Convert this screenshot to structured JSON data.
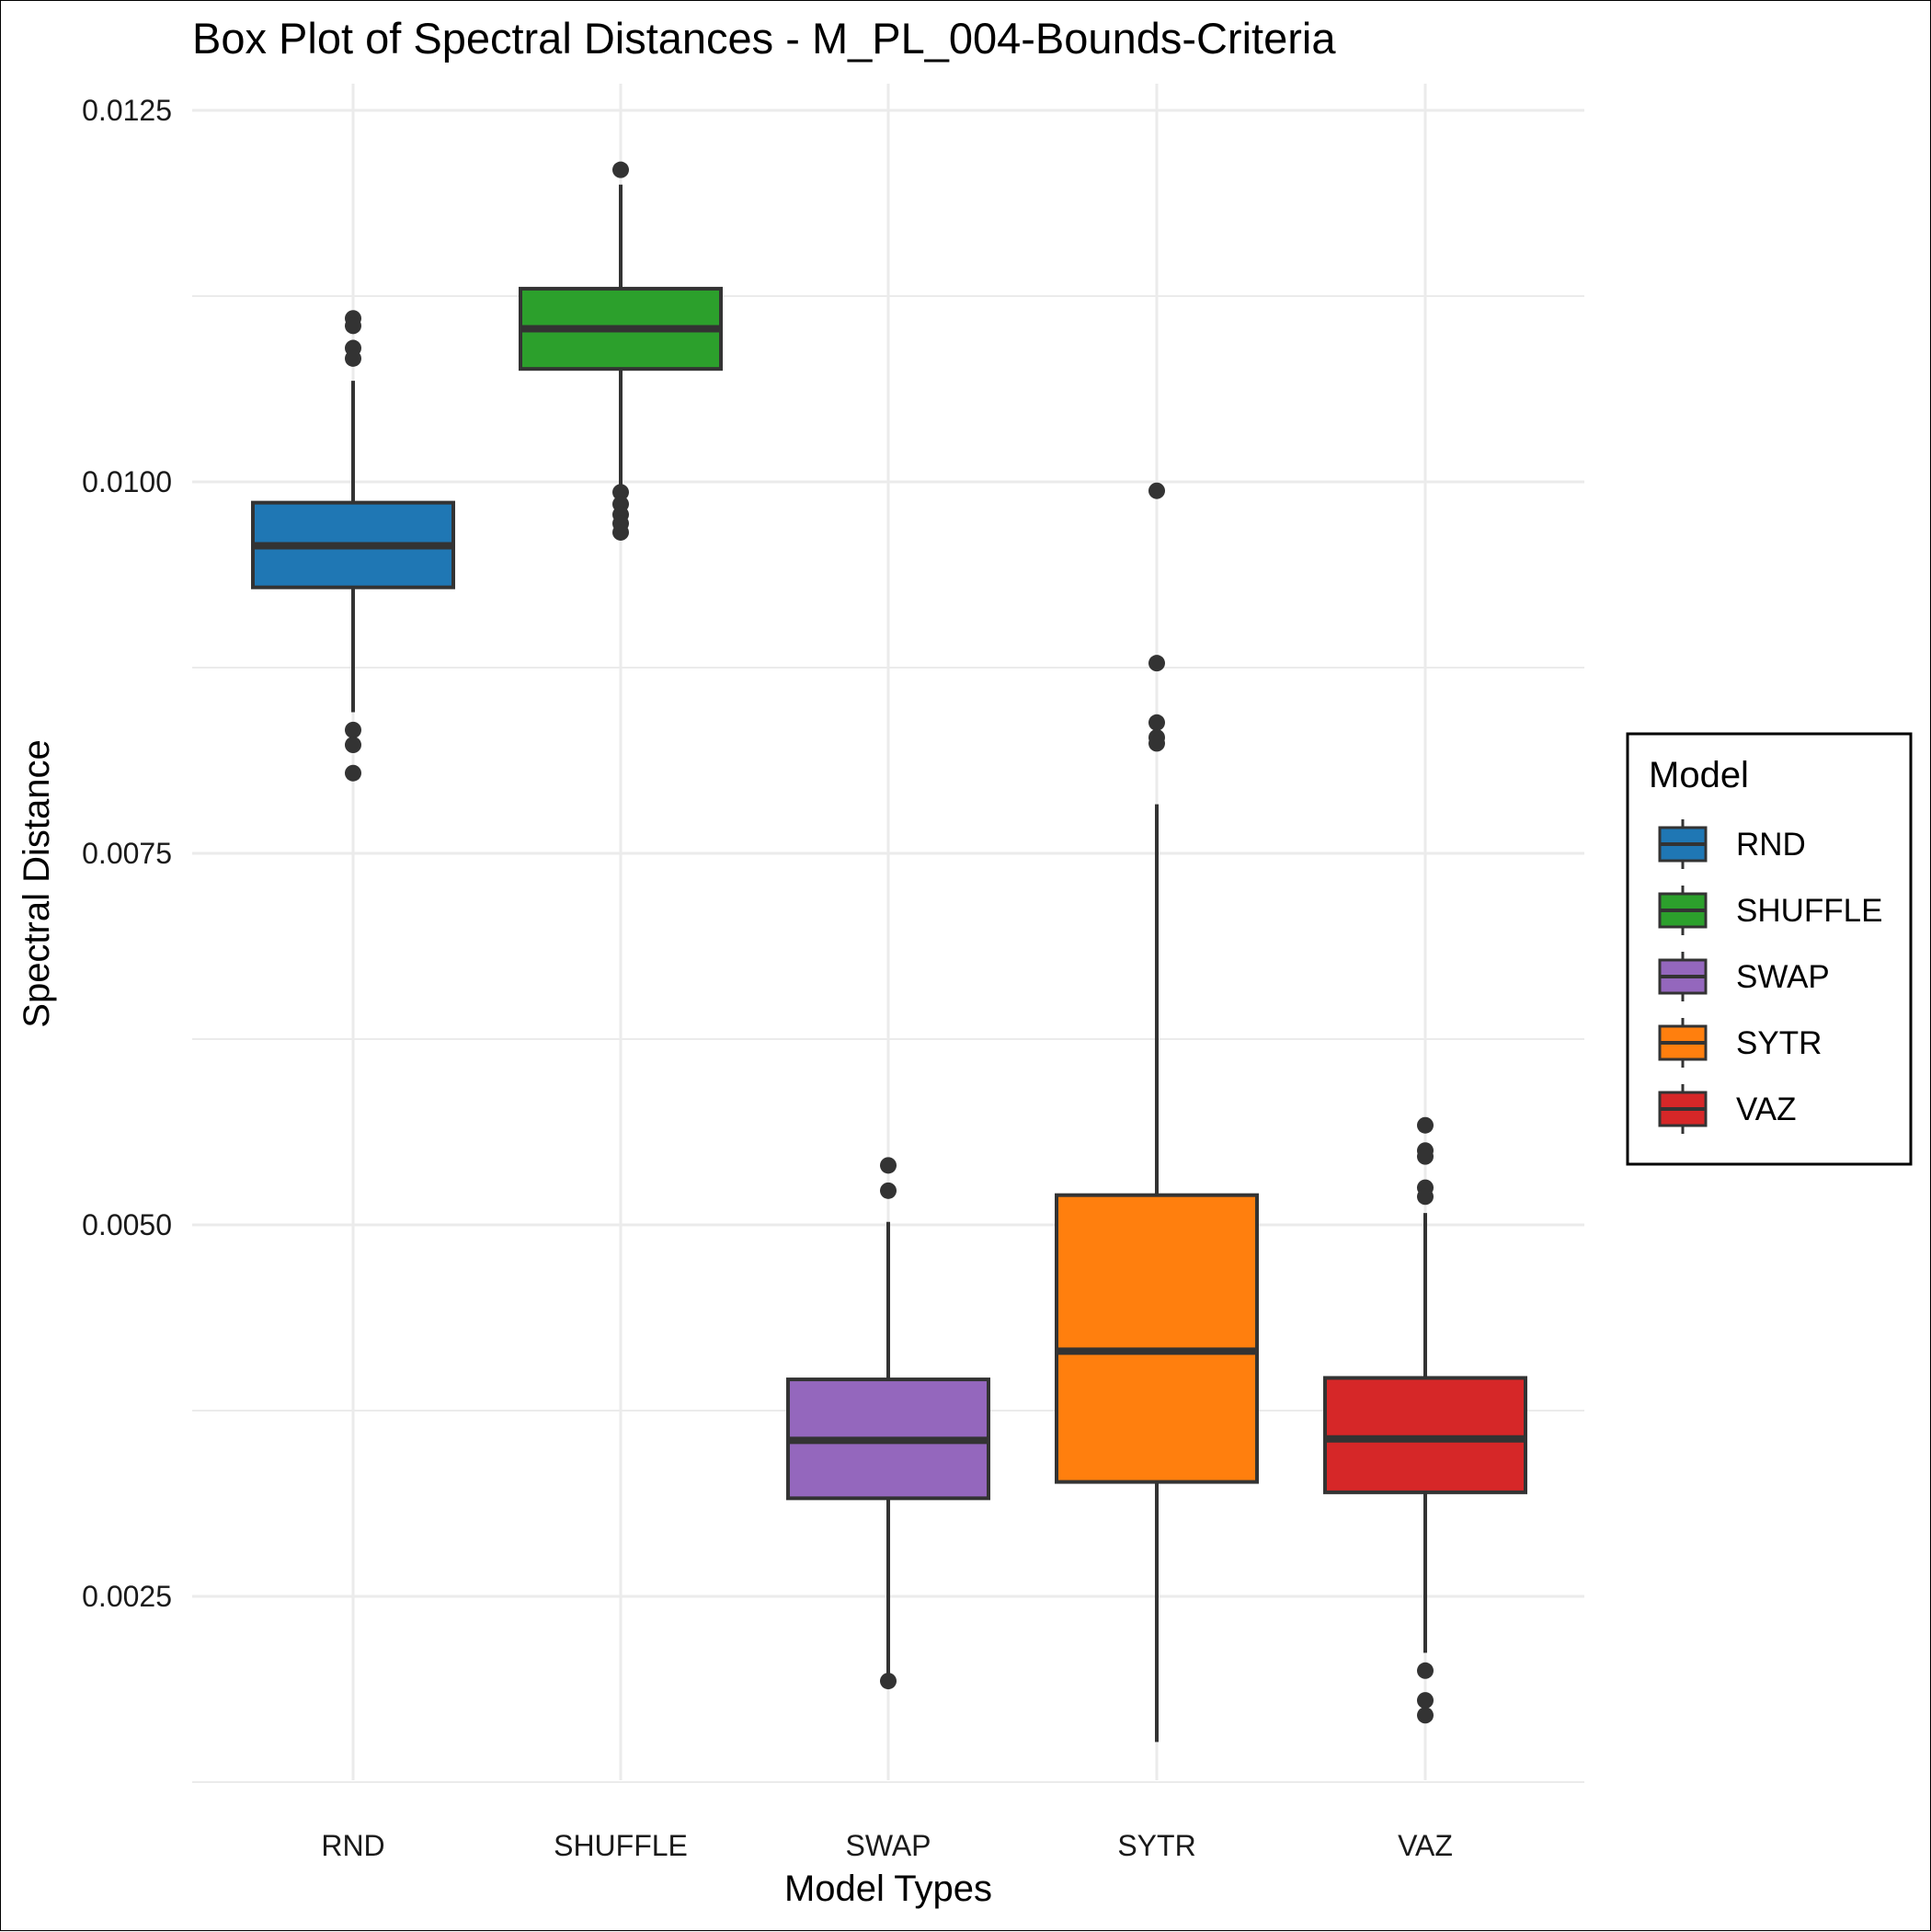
{
  "chart_data": {
    "type": "box",
    "title": "Box Plot of Spectral Distances -  M_PL_004-Bounds-Criteria",
    "xlabel": "Model Types",
    "ylabel": "Spectral Distance",
    "ylim": [
      0.0013,
      0.0126
    ],
    "y_ticks": [
      "0.0025",
      "0.0050",
      "0.0075",
      "0.0100",
      "0.0125"
    ],
    "y_tick_values": [
      0.0025,
      0.005,
      0.0075,
      0.01,
      0.0125
    ],
    "y_minor_gridlines": [
      0.00125,
      0.00375,
      0.00625,
      0.00875,
      0.01125
    ],
    "grid": true,
    "legend": {
      "title": "Model",
      "position": "right"
    },
    "categories": [
      "RND",
      "SHUFFLE",
      "SWAP",
      "SYTR",
      "VAZ"
    ],
    "series": [
      {
        "name": "RND",
        "color": "#1F77B4",
        "q1": 0.00929,
        "median": 0.00957,
        "q3": 0.00986,
        "whisker_low": 0.00845,
        "whisker_high": 0.01068,
        "outliers": [
          0.0111,
          0.01105,
          0.0109,
          0.01083,
          0.00833,
          0.00823,
          0.00804
        ]
      },
      {
        "name": "SHUFFLE",
        "color": "#2CA02C",
        "q1": 0.01076,
        "median": 0.01103,
        "q3": 0.0113,
        "whisker_low": 0.00997,
        "whisker_high": 0.012,
        "outliers": [
          0.0121,
          0.00993,
          0.00985,
          0.00978,
          0.00972,
          0.00966
        ]
      },
      {
        "name": "SWAP",
        "color": "#9467BD",
        "q1": 0.00316,
        "median": 0.00355,
        "q3": 0.00396,
        "whisker_low": 0.00198,
        "whisker_high": 0.00502,
        "outliers": [
          0.0054,
          0.00523,
          0.00193
        ]
      },
      {
        "name": "SYTR",
        "color": "#FF7F0E",
        "q1": 0.00327,
        "median": 0.00415,
        "q3": 0.0052,
        "whisker_low": 0.00152,
        "whisker_high": 0.00783,
        "outliers": [
          0.00994,
          0.00878,
          0.00838,
          0.00828,
          0.00824
        ]
      },
      {
        "name": "VAZ",
        "color": "#D62728",
        "q1": 0.0032,
        "median": 0.00356,
        "q3": 0.00397,
        "whisker_low": 0.00212,
        "whisker_high": 0.00508,
        "outliers": [
          0.00567,
          0.0055,
          0.00546,
          0.00525,
          0.00519,
          0.002,
          0.0018,
          0.0017
        ]
      }
    ]
  }
}
